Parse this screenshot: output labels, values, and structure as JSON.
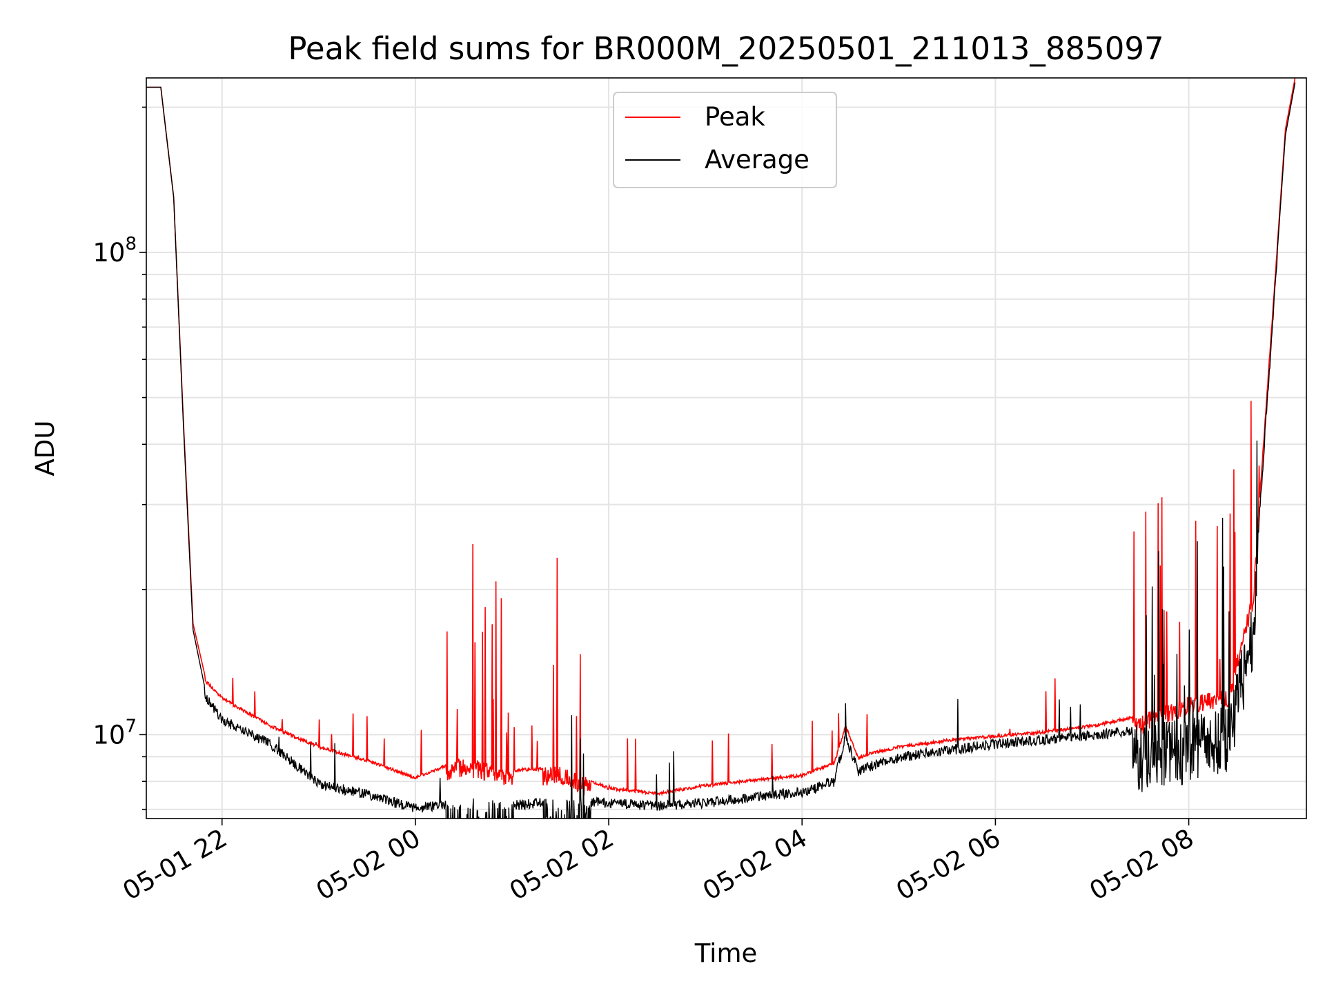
{
  "chart_data": {
    "type": "line",
    "title": "Peak field sums for BR000M_20250501_211013_885097",
    "xlabel": "Time",
    "ylabel": "ADU",
    "y_scale": "log",
    "ylim": [
      6700000,
      230000000
    ],
    "xlim": [
      "2025-05-01 21:13",
      "2025-05-02 09:13"
    ],
    "x_ticks": [
      "05-01 22",
      "05-02 00",
      "05-02 02",
      "05-02 04",
      "05-02 06",
      "05-02 08"
    ],
    "y_ticks": [
      {
        "base": "10",
        "exp": "7",
        "value": 10000000
      },
      {
        "base": "10",
        "exp": "8",
        "value": 100000000
      }
    ],
    "grid": true,
    "legend_position": "top-center",
    "legend": [
      {
        "label": "Peak",
        "color": "#ff0000"
      },
      {
        "label": "Average",
        "color": "#000000"
      }
    ],
    "series": [
      {
        "name": "Peak",
        "color": "#ff0000",
        "x": [
          "2025-05-01 21:13",
          "2025-05-01 21:22",
          "2025-05-01 21:30",
          "2025-05-01 21:36",
          "2025-05-01 21:42",
          "2025-05-01 21:50",
          "2025-05-01 22:00",
          "2025-05-01 22:30",
          "2025-05-01 23:00",
          "2025-05-01 23:30",
          "2025-05-02 00:00",
          "2025-05-02 00:30",
          "2025-05-02 01:00",
          "2025-05-02 01:30",
          "2025-05-02 02:00",
          "2025-05-02 02:30",
          "2025-05-02 03:00",
          "2025-05-02 03:30",
          "2025-05-02 04:00",
          "2025-05-02 04:20",
          "2025-05-02 04:27",
          "2025-05-02 04:35",
          "2025-05-02 04:42",
          "2025-05-02 05:00",
          "2025-05-02 05:30",
          "2025-05-02 06:00",
          "2025-05-02 06:30",
          "2025-05-02 07:00",
          "2025-05-02 07:30",
          "2025-05-02 08:00",
          "2025-05-02 08:25",
          "2025-05-02 08:40",
          "2025-05-02 08:50",
          "2025-05-02 09:00",
          "2025-05-02 09:06"
        ],
        "values": [
          220000000,
          220000000,
          130000000,
          45000000,
          17000000,
          13000000,
          12000000,
          10500000,
          9500000,
          8900000,
          8200000,
          9000000,
          8500000,
          8600000,
          7800000,
          7600000,
          7900000,
          8100000,
          8300000,
          8800000,
          10500000,
          9000000,
          9200000,
          9500000,
          9800000,
          10000000,
          10200000,
          10500000,
          11000000,
          12000000,
          12500000,
          20000000,
          60000000,
          180000000,
          230000000
        ]
      },
      {
        "name": "Average",
        "color": "#000000",
        "x": [
          "2025-05-01 21:13",
          "2025-05-01 21:22",
          "2025-05-01 21:30",
          "2025-05-01 21:36",
          "2025-05-01 21:42",
          "2025-05-01 21:50",
          "2025-05-01 22:00",
          "2025-05-01 22:30",
          "2025-05-01 23:00",
          "2025-05-01 23:30",
          "2025-05-02 00:00",
          "2025-05-02 00:30",
          "2025-05-02 01:00",
          "2025-05-02 01:30",
          "2025-05-02 02:00",
          "2025-05-02 02:30",
          "2025-05-02 03:00",
          "2025-05-02 03:30",
          "2025-05-02 04:00",
          "2025-05-02 04:20",
          "2025-05-02 04:27",
          "2025-05-02 04:35",
          "2025-05-02 04:42",
          "2025-05-02 05:00",
          "2025-05-02 05:30",
          "2025-05-02 06:00",
          "2025-05-02 06:30",
          "2025-05-02 07:00",
          "2025-05-02 07:30",
          "2025-05-02 08:00",
          "2025-05-02 08:25",
          "2025-05-02 08:40",
          "2025-05-02 08:50",
          "2025-05-02 09:00",
          "2025-05-02 09:06"
        ],
        "values": [
          220000000,
          220000000,
          130000000,
          44000000,
          16500000,
          12200000,
          11000000,
          9800000,
          8100000,
          7700000,
          7200000,
          7400000,
          7300000,
          7500000,
          7400000,
          7300000,
          7400000,
          7600000,
          7800000,
          8200000,
          10200000,
          8600000,
          8800000,
          9200000,
          9500000,
          9800000,
          10000000,
          10200000,
          10500000,
          11000000,
          11500000,
          19000000,
          58000000,
          175000000,
          225000000
        ]
      }
    ]
  }
}
